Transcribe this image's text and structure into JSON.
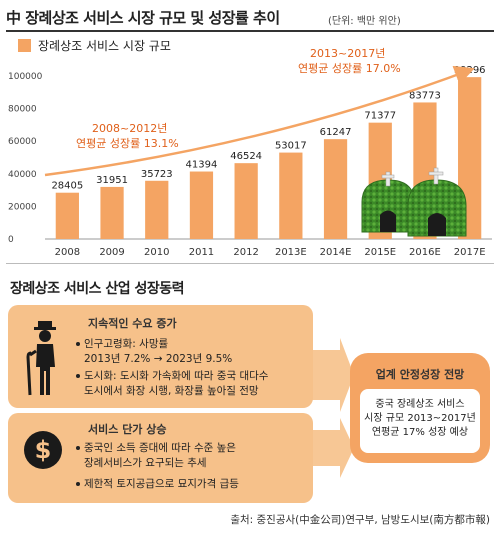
{
  "header": {
    "title": "中 장례상조 서비스 시장 규모 및 성장률 추이",
    "unit": "(단위: 백만 위안)"
  },
  "chart_data": {
    "type": "bar",
    "title": "中 장례상조 서비스 시장 규모 및 성장률 추이",
    "legend": "장례상조 서비스 시장 규모",
    "categories": [
      "2008",
      "2009",
      "2010",
      "2011",
      "2012",
      "2013E",
      "2014E",
      "2015E",
      "2016E",
      "2017E"
    ],
    "values": [
      28405,
      31951,
      35723,
      41394,
      46524,
      53017,
      61247,
      71377,
      83773,
      99296
    ],
    "value_labels": [
      "28405",
      "31951",
      "35723",
      "41394",
      "46524",
      "53017",
      "61247",
      "71377",
      "83773",
      "99296"
    ],
    "ylim": [
      0,
      100000
    ],
    "yticks": [
      "0",
      "20000",
      "40000",
      "60000",
      "80000",
      "100000"
    ],
    "grid": false,
    "annotations": [
      {
        "line1": "2008~2012년",
        "line2": "연평균 성장률 13.1%"
      },
      {
        "line1": "2013~2017년",
        "line2": "연평균 성장률 17.0%"
      }
    ],
    "bar_color": "#f4a463"
  },
  "section2": {
    "title": "장례상조 서비스 산업 성장동력",
    "card1": {
      "head": "지속적인 수요 증가",
      "icon": "elderly-person-icon",
      "bullets": [
        {
          "l1": "인구고령화: 사망률",
          "l2": "2013년 7.2% → 2023년 9.5%"
        },
        {
          "l1": "도시화: 도시화 가속화에 따라 중국 대다수",
          "l2": "도시에서 화장 시행, 화장률 높아질 전망"
        }
      ]
    },
    "card2": {
      "head": "서비스 단가 상승",
      "icon": "dollar-coin-icon",
      "bullets": [
        {
          "l1": "중국인 소득 증대에 따라 수준 높은",
          "l2": "장례서비스가 요구되는 추세"
        },
        {
          "l1": "제한적 토지공급으로 묘지가격 급등",
          "l2": ""
        }
      ]
    },
    "outcome": {
      "head": "업계 안정성장 전망",
      "l1": "중국 장례상조 서비스",
      "l2": "시장 규모 2013~2017년",
      "l3": "연평균 17% 성장 예상"
    }
  },
  "source": "출처: 중진공사(中金公司)연구부, 남방도시보(南方都市報)"
}
